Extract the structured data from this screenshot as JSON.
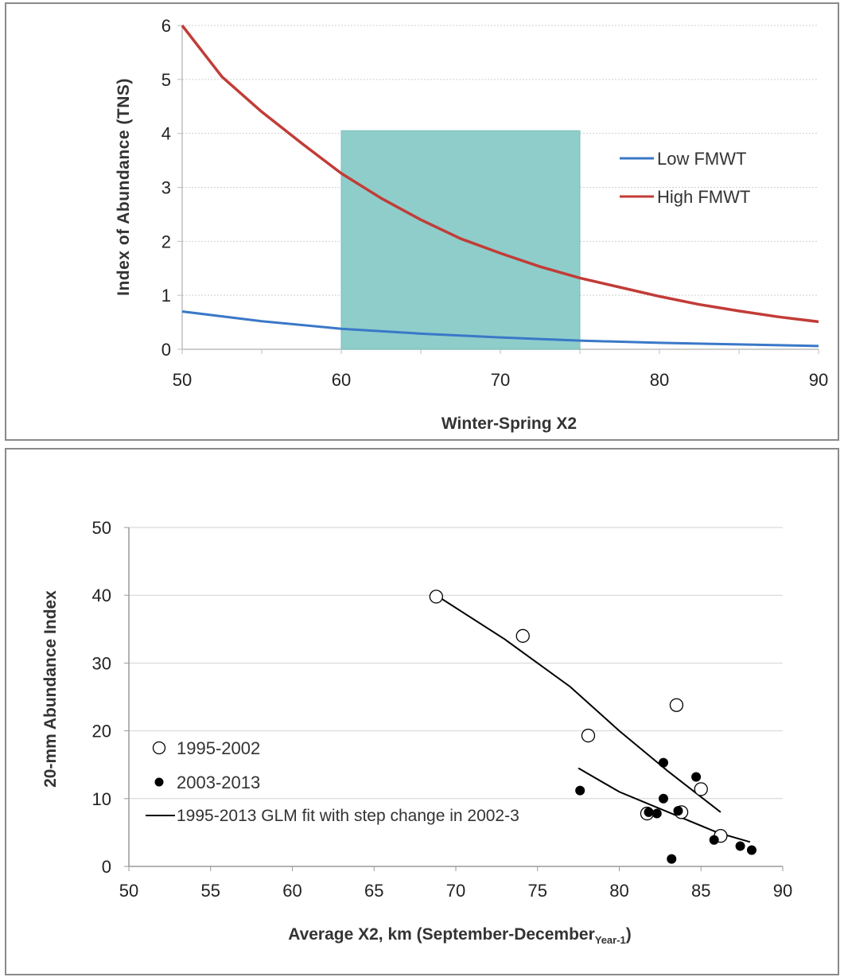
{
  "chart_data": [
    {
      "type": "line",
      "ylabel": "Index of Abundance (TNS)",
      "xlabel": "Winter-Spring X2",
      "xlim": [
        50,
        90
      ],
      "ylim": [
        0,
        6
      ],
      "xticks": [
        "50",
        "60",
        "70",
        "80",
        "90"
      ],
      "yticks": [
        "0",
        "1",
        "2",
        "3",
        "4",
        "5",
        "6"
      ],
      "grid": "horizontal dashed",
      "legend_position": "right",
      "shaded_region": {
        "x": [
          60,
          75
        ],
        "y": [
          0,
          4.05
        ],
        "color": "#8ecdca"
      },
      "series": [
        {
          "name": "Low FMWT",
          "color": "#3a78c8",
          "x": [
            50,
            55,
            60,
            65,
            70,
            75,
            80,
            85,
            90
          ],
          "y": [
            0.7,
            0.52,
            0.38,
            0.29,
            0.22,
            0.16,
            0.12,
            0.09,
            0.06
          ]
        },
        {
          "name": "High FMWT",
          "color": "#c23c37",
          "x": [
            50,
            52.5,
            55,
            57.5,
            60,
            62.5,
            65,
            67.5,
            70,
            72.5,
            75,
            77.5,
            80,
            82.5,
            85,
            87.5,
            90
          ],
          "y": [
            6.0,
            5.05,
            4.4,
            3.82,
            3.26,
            2.8,
            2.4,
            2.05,
            1.78,
            1.53,
            1.32,
            1.15,
            0.98,
            0.83,
            0.71,
            0.6,
            0.51
          ]
        }
      ]
    },
    {
      "type": "scatter",
      "ylabel": "20-mm Abundance  Index",
      "xlabel_main": "Average X2, km (September-December",
      "xlabel_sub": "Year-1",
      "xlabel_end": ")",
      "xlim": [
        50,
        90
      ],
      "ylim": [
        0,
        50
      ],
      "xticks": [
        "50",
        "55",
        "60",
        "65",
        "70",
        "75",
        "80",
        "85",
        "90"
      ],
      "yticks": [
        "0",
        "10",
        "20",
        "30",
        "40",
        "50"
      ],
      "grid": "horizontal",
      "legend_position": "bottom-left",
      "series": [
        {
          "name": "1995-2002",
          "marker": "open-circle",
          "points": [
            [
              68.8,
              39.8
            ],
            [
              74.1,
              34.0
            ],
            [
              78.1,
              19.3
            ],
            [
              83.5,
              23.8
            ],
            [
              85.0,
              11.4
            ],
            [
              81.7,
              7.8
            ],
            [
              83.8,
              8.0
            ],
            [
              86.2,
              4.5
            ]
          ]
        },
        {
          "name": "2003-2013",
          "marker": "filled-circle",
          "points": [
            [
              77.6,
              11.2
            ],
            [
              82.7,
              15.3
            ],
            [
              84.7,
              13.2
            ],
            [
              82.7,
              10.0
            ],
            [
              81.8,
              8.0
            ],
            [
              82.3,
              7.8
            ],
            [
              83.6,
              8.2
            ],
            [
              85.8,
              3.9
            ],
            [
              87.4,
              3.0
            ],
            [
              88.1,
              2.4
            ],
            [
              83.2,
              1.1
            ]
          ]
        },
        {
          "name": "1995-2013 GLM fit with step change in 2002-3",
          "marker": "line",
          "lines": [
            [
              [
                68.8,
                40.0
              ],
              [
                73.0,
                33.5
              ],
              [
                77.0,
                26.5
              ],
              [
                80.0,
                20.0
              ],
              [
                83.0,
                14.0
              ],
              [
                86.2,
                8.0
              ]
            ],
            [
              [
                77.5,
                14.5
              ],
              [
                80.0,
                11.0
              ],
              [
                83.0,
                8.0
              ],
              [
                86.0,
                5.0
              ],
              [
                88.0,
                3.6
              ]
            ]
          ]
        }
      ]
    }
  ]
}
